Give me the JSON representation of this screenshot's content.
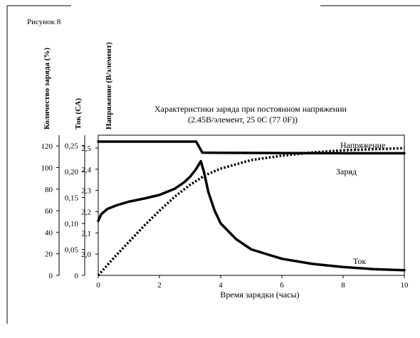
{
  "figure_label": "Рисунок 8",
  "chart_data": {
    "type": "line",
    "title": "Характеристики заряда при постоянном напряжении",
    "subtitle": "(2.45В/элемент, 25 0С (77 0F))",
    "xlabel": "Время зарядки (часы)",
    "xlim": [
      0,
      10
    ],
    "x_ticks": [
      "0",
      "2",
      "4",
      "6",
      "8",
      "10"
    ],
    "grid": false,
    "y_axes": [
      {
        "label": "Количество заряда (%)",
        "ticks": [
          "0",
          "20",
          "40",
          "60",
          "80",
          "100",
          "120"
        ],
        "range": [
          0,
          130
        ]
      },
      {
        "label": "Ток (СА)",
        "ticks": [
          "0",
          "0,05",
          "0,10",
          "0,15",
          "0,20",
          "0,25"
        ],
        "range": [
          0,
          0.27
        ]
      },
      {
        "label": "Напряжение (В/элемент)",
        "ticks": [
          "2,0",
          "2,1",
          "2,2",
          "2,3",
          "2,4",
          "2,5"
        ],
        "range": [
          1.9,
          2.56
        ]
      }
    ],
    "series": [
      {
        "name": "Напряжение",
        "axis": "Напряжение (В/элемент)",
        "style": "solid",
        "x": [
          0,
          1,
          2,
          3,
          3.2,
          3.4,
          4,
          6,
          8,
          10
        ],
        "y": [
          2.53,
          2.53,
          2.53,
          2.53,
          2.53,
          2.478,
          2.477,
          2.476,
          2.475,
          2.475
        ]
      },
      {
        "name": "Заряд",
        "axis": "Количество заряда (%)",
        "style": "dotted",
        "x": [
          0,
          0.5,
          1,
          1.5,
          2,
          2.5,
          3,
          3.5,
          4,
          5,
          6,
          7,
          8,
          9,
          10
        ],
        "y": [
          0,
          16,
          31,
          46,
          60,
          73,
          84,
          93,
          99,
          107,
          111,
          114,
          116,
          117,
          118
        ]
      },
      {
        "name": "Ток",
        "axis": "Ток (СА)",
        "style": "solid",
        "x": [
          0,
          0.1,
          0.3,
          0.6,
          1,
          1.5,
          2,
          2.5,
          2.8,
          3,
          3.2,
          3.35,
          3.45,
          3.6,
          3.8,
          4,
          4.5,
          5,
          6,
          7,
          8,
          9,
          10
        ],
        "y": [
          0.105,
          0.118,
          0.128,
          0.135,
          0.142,
          0.148,
          0.155,
          0.167,
          0.179,
          0.19,
          0.205,
          0.22,
          0.2,
          0.16,
          0.125,
          0.1,
          0.07,
          0.05,
          0.032,
          0.022,
          0.016,
          0.012,
          0.01
        ]
      }
    ]
  }
}
